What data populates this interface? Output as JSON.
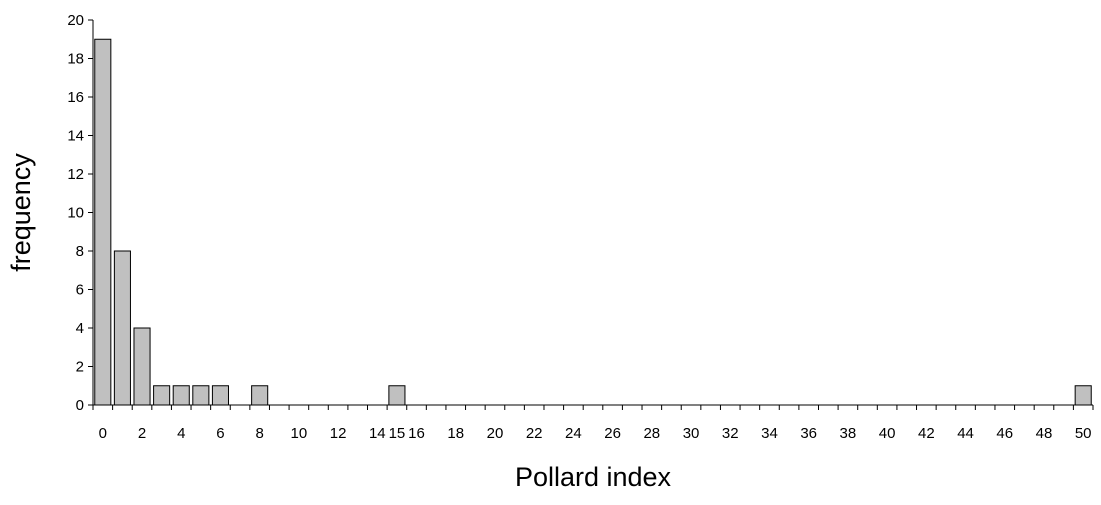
{
  "chart_data": {
    "type": "bar",
    "title": "",
    "xlabel": "Pollard index",
    "ylabel": "frequency",
    "categories": [
      "0",
      "1",
      "2",
      "3",
      "4",
      "5",
      "6",
      "7",
      "8",
      "9",
      "10",
      "11",
      "12",
      "13",
      "14",
      "15",
      "16",
      "17",
      "18",
      "19",
      "20",
      "21",
      "22",
      "23",
      "24",
      "25",
      "26",
      "27",
      "28",
      "29",
      "30",
      "31",
      "32",
      "33",
      "34",
      "35",
      "36",
      "37",
      "38",
      "39",
      "40",
      "41",
      "42",
      "43",
      "44",
      "45",
      "46",
      "47",
      "48",
      "49",
      "50"
    ],
    "x_tick_labels": [
      "0",
      "2",
      "4",
      "6",
      "8",
      "10",
      "12",
      "14",
      "15",
      "16",
      "18",
      "20",
      "22",
      "24",
      "26",
      "28",
      "30",
      "32",
      "34",
      "36",
      "38",
      "40",
      "42",
      "44",
      "46",
      "48",
      "50"
    ],
    "values": [
      19,
      8,
      4,
      1,
      1,
      1,
      1,
      0,
      1,
      0,
      0,
      0,
      0,
      0,
      0,
      1,
      0,
      0,
      0,
      0,
      0,
      0,
      0,
      0,
      0,
      0,
      0,
      0,
      0,
      0,
      0,
      0,
      0,
      0,
      0,
      0,
      0,
      0,
      0,
      0,
      0,
      0,
      0,
      0,
      0,
      0,
      0,
      0,
      0,
      0,
      1
    ],
    "ylim": [
      0,
      20
    ],
    "y_ticks": [
      0,
      2,
      4,
      6,
      8,
      10,
      12,
      14,
      16,
      18,
      20
    ],
    "grid": false,
    "legend": "none",
    "bar_color": "#c0c0c0",
    "edge_color": "#000000"
  }
}
